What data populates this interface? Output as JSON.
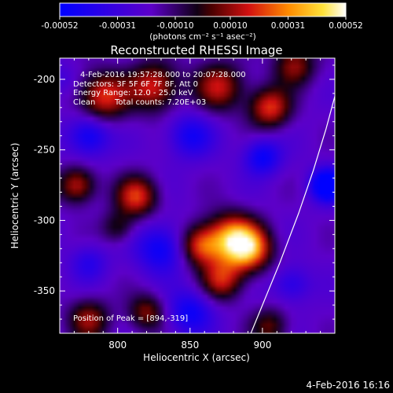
{
  "chart_data": {
    "type": "heatmap",
    "title": "Reconstructed RHESSI Image",
    "xlabel": "Heliocentric X (arcsec)",
    "ylabel": "Heliocentric Y (arcsec)",
    "xlim": [
      760,
      950
    ],
    "ylim": [
      -380,
      -185
    ],
    "x_ticks": [
      800,
      850,
      900
    ],
    "y_ticks": [
      -200,
      -250,
      -300,
      -350
    ],
    "colorbar": {
      "label": "(photons cm⁻² s⁻¹ asec⁻²)",
      "ticks": [
        "-0.00052",
        "-0.00031",
        "-0.00010",
        "0.00010",
        "0.00031",
        "0.00052"
      ],
      "range": [
        -0.00052,
        0.00052
      ]
    },
    "annotations": [
      "4-Feb-2016 19:57:28.000 to 20:07:28.000",
      "Detectors: 3F 5F 6F 7F 8F, Att 0",
      "Energy Range: 12.0 - 25.0 keV",
      "Clean",
      "Total counts: 7.20E+03"
    ],
    "peak_label": "Position of Peak = [894,-319]",
    "peak": [
      894,
      -319
    ],
    "limb_line": [
      [
        892,
        -380
      ],
      [
        900,
        -360
      ],
      [
        912,
        -330
      ],
      [
        925,
        -295
      ],
      [
        935,
        -265
      ],
      [
        944,
        -235
      ],
      [
        950,
        -212
      ]
    ],
    "field_sources": [
      {
        "x": 890,
        "y": -320,
        "amp": 0.00052,
        "s": 11
      },
      {
        "x": 878,
        "y": -312,
        "amp": 0.00045,
        "s": 12
      },
      {
        "x": 857,
        "y": -318,
        "amp": 0.0004,
        "s": 10
      },
      {
        "x": 872,
        "y": -342,
        "amp": 0.00035,
        "s": 10
      },
      {
        "x": 813,
        "y": -283,
        "amp": 0.0004,
        "s": 10
      },
      {
        "x": 772,
        "y": -275,
        "amp": 0.00035,
        "s": 9
      },
      {
        "x": 790,
        "y": -212,
        "amp": 0.0004,
        "s": 12
      },
      {
        "x": 825,
        "y": -205,
        "amp": 0.00038,
        "s": 12
      },
      {
        "x": 870,
        "y": -205,
        "amp": 0.00034,
        "s": 12
      },
      {
        "x": 905,
        "y": -220,
        "amp": 0.0004,
        "s": 10
      },
      {
        "x": 922,
        "y": -190,
        "amp": 0.0003,
        "s": 10
      },
      {
        "x": 780,
        "y": -370,
        "amp": 0.0003,
        "s": 10
      },
      {
        "x": 820,
        "y": -365,
        "amp": 0.00028,
        "s": 9
      },
      {
        "x": 905,
        "y": -375,
        "amp": 0.00024,
        "s": 9
      },
      {
        "x": 800,
        "y": -305,
        "amp": 0.0002,
        "s": 8
      },
      {
        "x": 780,
        "y": -240,
        "amp": -0.0003,
        "s": 10
      },
      {
        "x": 850,
        "y": -240,
        "amp": -0.00025,
        "s": 11
      },
      {
        "x": 945,
        "y": -275,
        "amp": -0.0005,
        "s": 8
      },
      {
        "x": 900,
        "y": -255,
        "amp": -0.0003,
        "s": 9
      },
      {
        "x": 830,
        "y": -320,
        "amp": -0.0003,
        "s": 12
      },
      {
        "x": 780,
        "y": -330,
        "amp": -0.00018,
        "s": 9
      },
      {
        "x": 850,
        "y": -365,
        "amp": -0.00028,
        "s": 11
      },
      {
        "x": 920,
        "y": -345,
        "amp": -0.0002,
        "s": 9
      },
      {
        "x": 760,
        "y": -200,
        "amp": -0.0001,
        "s": 8
      }
    ]
  },
  "footer_date": "4-Feb-2016 16:16"
}
